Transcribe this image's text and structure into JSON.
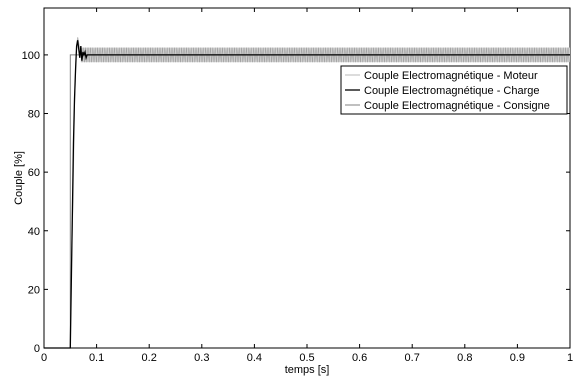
{
  "chart_data": {
    "type": "line",
    "xlabel": "temps [s]",
    "ylabel": "Couple [%]",
    "xlim": [
      0,
      1
    ],
    "ylim": [
      0,
      116
    ],
    "xticks": [
      "0",
      "0.1",
      "0.2",
      "0.3",
      "0.4",
      "0.5",
      "0.6",
      "0.7",
      "0.8",
      "0.9",
      "1"
    ],
    "yticks": [
      "0",
      "20",
      "40",
      "60",
      "80",
      "100"
    ],
    "grid": false,
    "legend_position": "top-right",
    "series": [
      {
        "name": "Couple Electromagnétique - Moteur",
        "color": "#b8b8b8",
        "style": "ripple band ≈ ±2.5 around 100 after 0.07 s",
        "ripple_amplitude": 2.5,
        "x": [
          0,
          0.05,
          0.051,
          0.055,
          0.058,
          0.061,
          0.064,
          0.067,
          0.07,
          0.08,
          0.1,
          0.3,
          0.5,
          0.7,
          0.9,
          1.0
        ],
        "y": [
          0,
          0,
          20,
          50,
          83,
          100,
          106,
          103,
          101,
          99,
          100,
          100,
          100,
          100,
          100,
          100
        ]
      },
      {
        "name": "Couple Electromagnétique - Charge",
        "color": "#000000",
        "x": [
          0,
          0.05,
          0.053,
          0.056,
          0.058,
          0.06,
          0.062,
          0.064,
          0.066,
          0.068,
          0.07,
          0.072,
          0.074,
          0.076,
          0.078,
          0.08,
          0.082,
          0.085,
          0.09,
          1.0
        ],
        "y": [
          0,
          0,
          35,
          70,
          85,
          95,
          103,
          105,
          102,
          99,
          103,
          98,
          101,
          100,
          101,
          99,
          100,
          100,
          100,
          100
        ]
      },
      {
        "name": "Couple Electromagnétique - Consigne",
        "color": "#808080",
        "x": [
          0,
          0.05,
          0.05,
          1.0
        ],
        "y": [
          0,
          0,
          100,
          100
        ]
      }
    ]
  }
}
